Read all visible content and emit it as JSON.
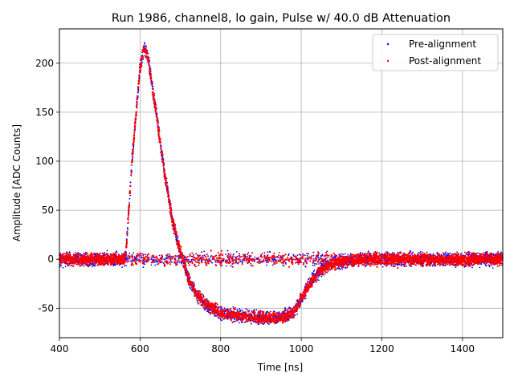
{
  "chart_data": {
    "type": "scatter",
    "title": "Run 1986, channel8, lo gain, Pulse w/ 40.0 dB Attenuation",
    "xlabel": "Time [ns]",
    "ylabel": "Amplitude [ADC Counts]",
    "xlim": [
      400,
      1500
    ],
    "ylim": [
      -80,
      235
    ],
    "xticks": [
      400,
      600,
      800,
      1000,
      1200,
      1400
    ],
    "yticks": [
      -50,
      0,
      50,
      100,
      150,
      200
    ],
    "grid": true,
    "legend_position": "top-right",
    "series": [
      {
        "name": "Pre-alignment",
        "color": "#0000ff",
        "x": [
          400,
          480,
          560,
          565,
          580,
          600,
          610,
          620,
          640,
          660,
          680,
          700,
          720,
          740,
          760,
          800,
          850,
          900,
          950,
          980,
          1000,
          1020,
          1050,
          1080,
          1100,
          1150,
          1200,
          1300,
          1400,
          1500
        ],
        "y": [
          0,
          0,
          0,
          5,
          100,
          195,
          217,
          205,
          150,
          90,
          40,
          8,
          -20,
          -35,
          -45,
          -55,
          -58,
          -60,
          -60,
          -55,
          -40,
          -25,
          -10,
          -5,
          -2,
          0,
          0,
          0,
          0,
          0
        ]
      },
      {
        "name": "Post-alignment",
        "color": "#ff0000",
        "x": [
          400,
          480,
          560,
          565,
          580,
          600,
          610,
          620,
          640,
          660,
          680,
          700,
          720,
          740,
          760,
          800,
          850,
          900,
          950,
          980,
          1000,
          1020,
          1050,
          1080,
          1100,
          1150,
          1200,
          1300,
          1400,
          1500
        ],
        "y": [
          0,
          0,
          0,
          5,
          100,
          195,
          217,
          205,
          150,
          90,
          40,
          8,
          -20,
          -35,
          -45,
          -55,
          -58,
          -60,
          -60,
          -55,
          -40,
          -25,
          -10,
          -5,
          -2,
          0,
          0,
          0,
          0,
          0
        ]
      }
    ]
  }
}
